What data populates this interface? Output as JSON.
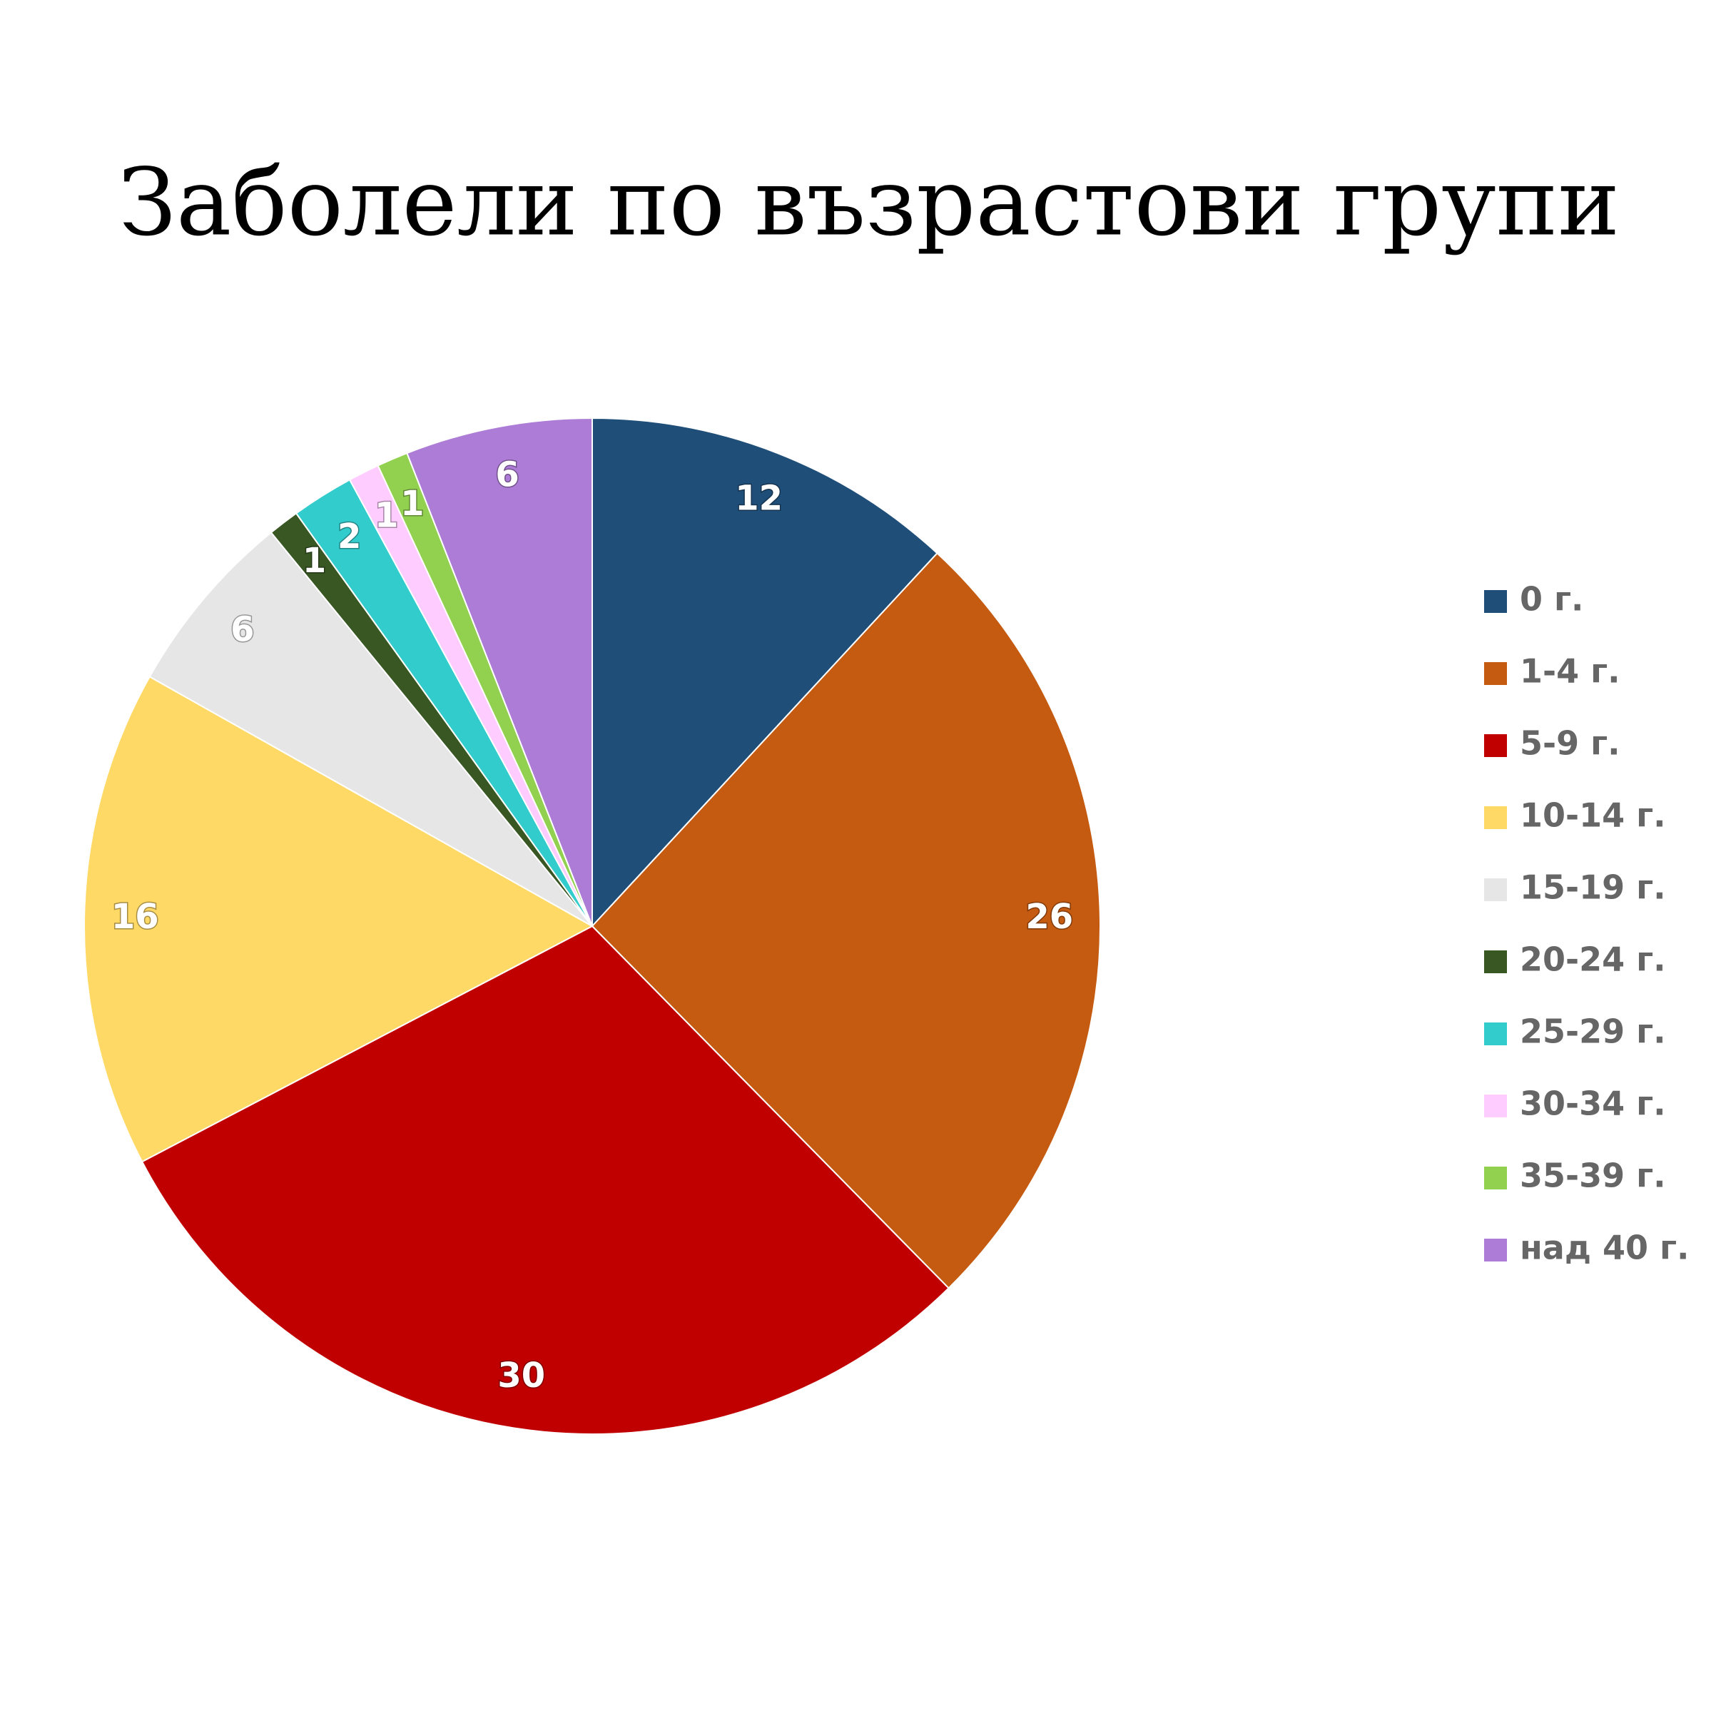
{
  "chart_data": {
    "type": "pie",
    "title": "Заболели по възрастови групи",
    "categories": [
      "0 г.",
      "1-4 г.",
      "5-9 г.",
      "10-14 г.",
      "15-19 г.",
      "20-24 г.",
      "25-29 г.",
      "30-34 г.",
      "35-39 г.",
      "над 40 г."
    ],
    "values": [
      12,
      26,
      30,
      16,
      6,
      1,
      2,
      1,
      1,
      6
    ],
    "colors": [
      "#1f4e79",
      "#c55a11",
      "#c00000",
      "#ffd966",
      "#e7e6e6",
      "#385723",
      "#33cccc",
      "#ffccff",
      "#92d050",
      "#ac7cd6"
    ],
    "legend": "right"
  }
}
